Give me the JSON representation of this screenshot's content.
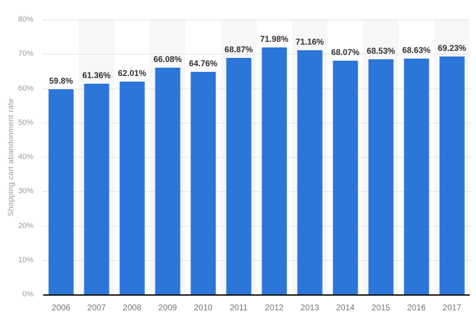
{
  "chart_data": {
    "type": "bar",
    "title": "",
    "ylabel": "Shopping cart abandonment rate",
    "xlabel": "",
    "categories": [
      "2006",
      "2007",
      "2008",
      "2009",
      "2010",
      "2011",
      "2012",
      "2013",
      "2014",
      "2015",
      "2016",
      "2017"
    ],
    "values": [
      59.8,
      61.36,
      62.01,
      66.08,
      64.76,
      68.87,
      71.98,
      71.16,
      68.07,
      68.53,
      68.63,
      69.23
    ],
    "value_labels": [
      "59.8%",
      "61.36%",
      "62.01%",
      "66.08%",
      "64.76%",
      "68.87%",
      "71.98%",
      "71.16%",
      "68.07%",
      "68.53%",
      "68.63%",
      "69.23%"
    ],
    "ylim": [
      0,
      80
    ],
    "yticks": [
      "80%",
      "70%",
      "60%",
      "50%",
      "40%",
      "30%",
      "20%",
      "10%",
      "0%"
    ],
    "grid": "horizontal-dotted",
    "legend": "none",
    "colors": {
      "bar": "#2d76d9",
      "stripe": "#f7f7f7",
      "gridline": "#cfcfcf",
      "axis_line": "#141414",
      "tick_text": "#9a9a9a",
      "category_text": "#757575",
      "value_text": "#303030",
      "background": "#ffffff"
    }
  }
}
